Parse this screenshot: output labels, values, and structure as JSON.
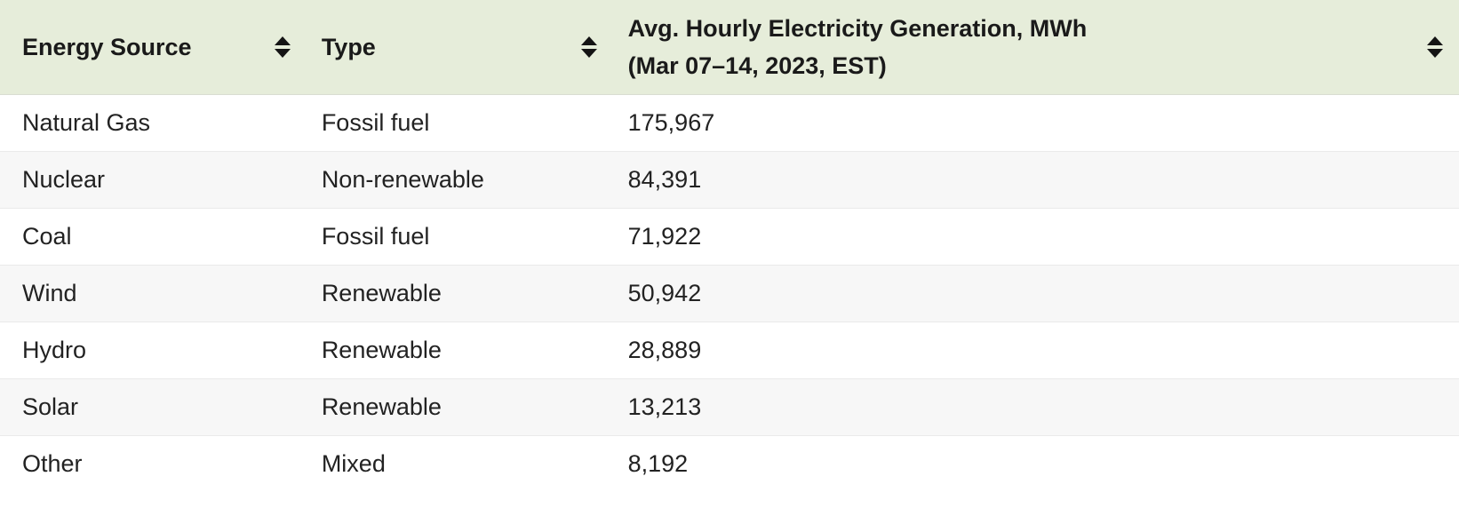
{
  "colors": {
    "header_bg": "#e6edda",
    "row_bg": "#ffffff",
    "row_alt_bg": "#f7f7f7",
    "row_border": "#eaeaea",
    "text": "#1a1a1a",
    "sort_icon": "#141414"
  },
  "table": {
    "columns": [
      {
        "label": "Energy Source",
        "sortable": true
      },
      {
        "label": "Type",
        "sortable": true
      },
      {
        "label_line1": "Avg. Hourly Electricity Generation, MWh",
        "label_line2": "(Mar 07–14, 2023, EST)",
        "sortable": true
      }
    ],
    "rows": [
      {
        "source": "Natural Gas",
        "type": "Fossil fuel",
        "value": "175,967"
      },
      {
        "source": "Nuclear",
        "type": "Non-renewable",
        "value": "84,391"
      },
      {
        "source": "Coal",
        "type": "Fossil fuel",
        "value": "71,922"
      },
      {
        "source": "Wind",
        "type": "Renewable",
        "value": "50,942"
      },
      {
        "source": "Hydro",
        "type": "Renewable",
        "value": "28,889"
      },
      {
        "source": "Solar",
        "type": "Renewable",
        "value": "13,213"
      },
      {
        "source": "Other",
        "type": "Mixed",
        "value": "8,192"
      }
    ]
  },
  "chart_data": {
    "type": "table",
    "title": "Avg. Hourly Electricity Generation, MWh (Mar 07–14, 2023, EST)",
    "columns": [
      "Energy Source",
      "Type",
      "Avg. Hourly Electricity Generation, MWh (Mar 07–14, 2023, EST)"
    ],
    "categories": [
      "Natural Gas",
      "Nuclear",
      "Coal",
      "Wind",
      "Hydro",
      "Solar",
      "Other"
    ],
    "types": [
      "Fossil fuel",
      "Non-renewable",
      "Fossil fuel",
      "Renewable",
      "Renewable",
      "Renewable",
      "Mixed"
    ],
    "values": [
      175967,
      84391,
      71922,
      50942,
      28889,
      13213,
      8192
    ]
  }
}
